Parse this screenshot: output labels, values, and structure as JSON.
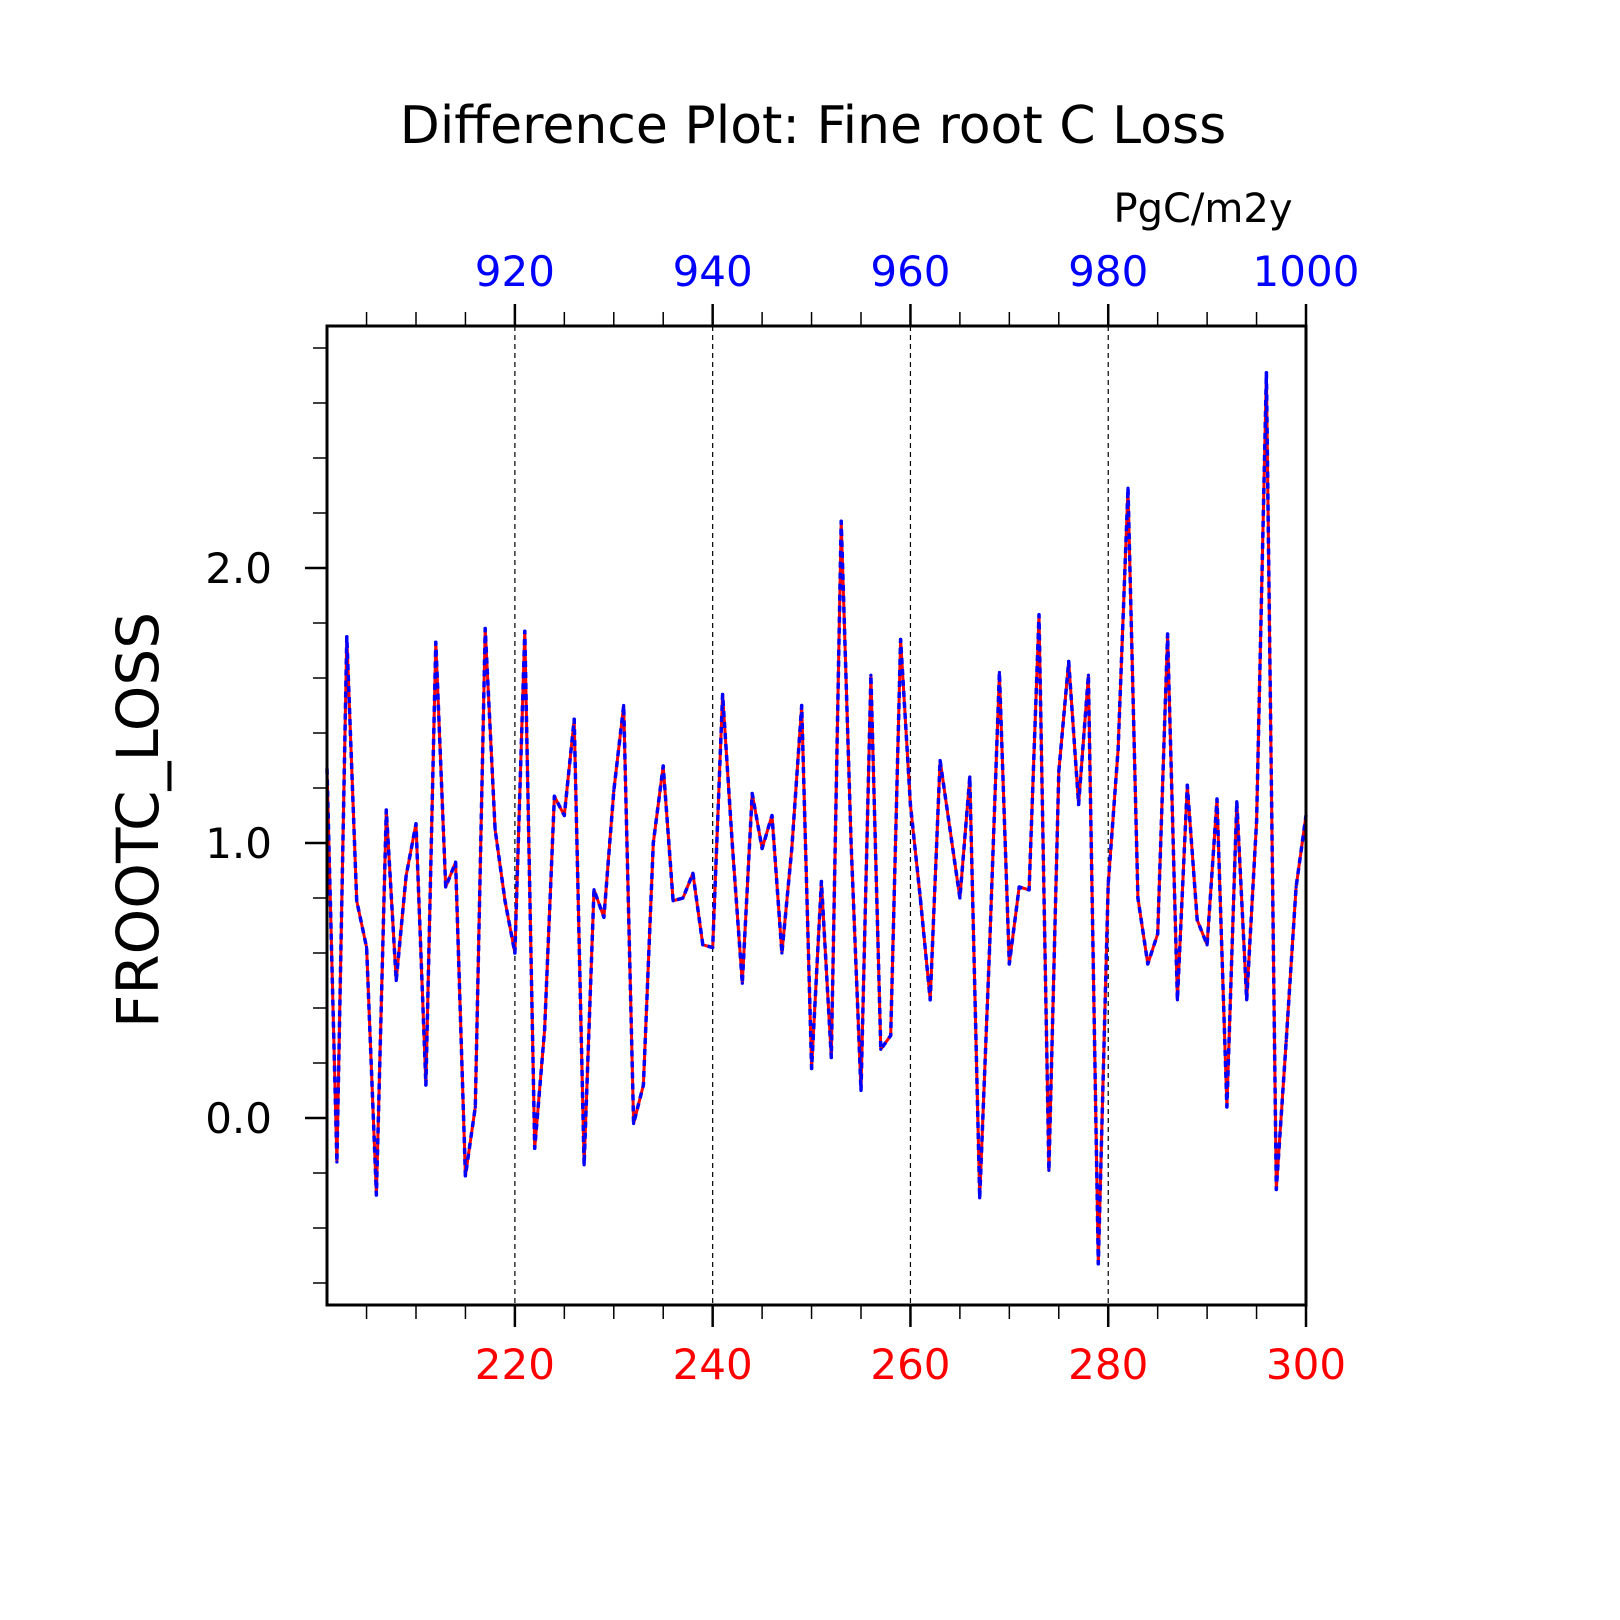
{
  "chart_data": {
    "type": "line",
    "title": "Difference Plot: Fine root C Loss",
    "units_label": "PgC/m2y",
    "ylabel": "FROOTC_LOSS",
    "xlabel": "",
    "xlim": [
      201,
      300
    ],
    "ylim": [
      -0.68,
      2.88
    ],
    "x_ticks": [
      220,
      240,
      260,
      280,
      300
    ],
    "x_tick_labels": [
      "220",
      "240",
      "260",
      "280",
      "300"
    ],
    "x_top_ticks": [
      220,
      240,
      260,
      280,
      300
    ],
    "x_top_tick_labels": [
      "920",
      "940",
      "960",
      "980",
      "1000"
    ],
    "y_ticks": [
      0,
      1,
      2
    ],
    "y_tick_labels": [
      "0.0",
      "1.0",
      "2.0"
    ],
    "grid": "vertical dashed at major x ticks",
    "colors": {
      "bottom_axis": "#ff0000",
      "top_axis": "#0000ff",
      "series_a": "#ff0000",
      "series_b": "#0000ff",
      "axis": "#000000",
      "grid": "#000000"
    },
    "x": [
      201,
      202,
      203,
      204,
      205,
      206,
      207,
      208,
      209,
      210,
      211,
      212,
      213,
      214,
      215,
      216,
      217,
      218,
      219,
      220,
      221,
      222,
      223,
      224,
      225,
      226,
      227,
      228,
      229,
      230,
      231,
      232,
      233,
      234,
      235,
      236,
      237,
      238,
      239,
      240,
      241,
      242,
      243,
      244,
      245,
      246,
      247,
      248,
      249,
      250,
      251,
      252,
      253,
      254,
      255,
      256,
      257,
      258,
      259,
      260,
      261,
      262,
      263,
      264,
      265,
      266,
      267,
      268,
      269,
      270,
      271,
      272,
      273,
      274,
      275,
      276,
      277,
      278,
      279,
      280,
      281,
      282,
      283,
      284,
      285,
      286,
      287,
      288,
      289,
      290,
      291,
      292,
      293,
      294,
      295,
      296,
      297,
      298,
      299,
      300
    ],
    "series": [
      {
        "values": [
          1.27,
          -0.16,
          1.75,
          0.79,
          0.62,
          -0.28,
          1.12,
          0.5,
          0.88,
          1.07,
          0.12,
          1.73,
          0.84,
          0.93,
          -0.21,
          0.04,
          1.78,
          1.05,
          0.79,
          0.6,
          1.77,
          -0.11,
          0.32,
          1.17,
          1.1,
          1.45,
          -0.17,
          0.83,
          0.73,
          1.19,
          1.5,
          -0.02,
          0.12,
          1.0,
          1.28,
          0.79,
          0.8,
          0.89,
          0.63,
          0.62,
          1.54,
          0.99,
          0.49,
          1.18,
          0.98,
          1.1,
          0.6,
          0.98,
          1.5,
          0.18,
          0.86,
          0.22,
          2.17,
          1.0,
          0.1,
          1.61,
          0.25,
          0.3,
          1.74,
          1.14,
          0.8,
          0.43,
          1.3,
          1.05,
          0.8,
          1.24,
          -0.29,
          0.62,
          1.62,
          0.56,
          0.84,
          0.83,
          1.83,
          -0.19,
          1.26,
          1.66,
          1.14,
          1.61,
          -0.53,
          0.85,
          1.34,
          2.29,
          0.8,
          0.56,
          0.67,
          1.76,
          0.43,
          1.21,
          0.72,
          0.63,
          1.16,
          0.04,
          1.15,
          0.43,
          1.08,
          2.71,
          -0.26,
          0.28,
          0.84,
          1.1
        ]
      }
    ]
  }
}
